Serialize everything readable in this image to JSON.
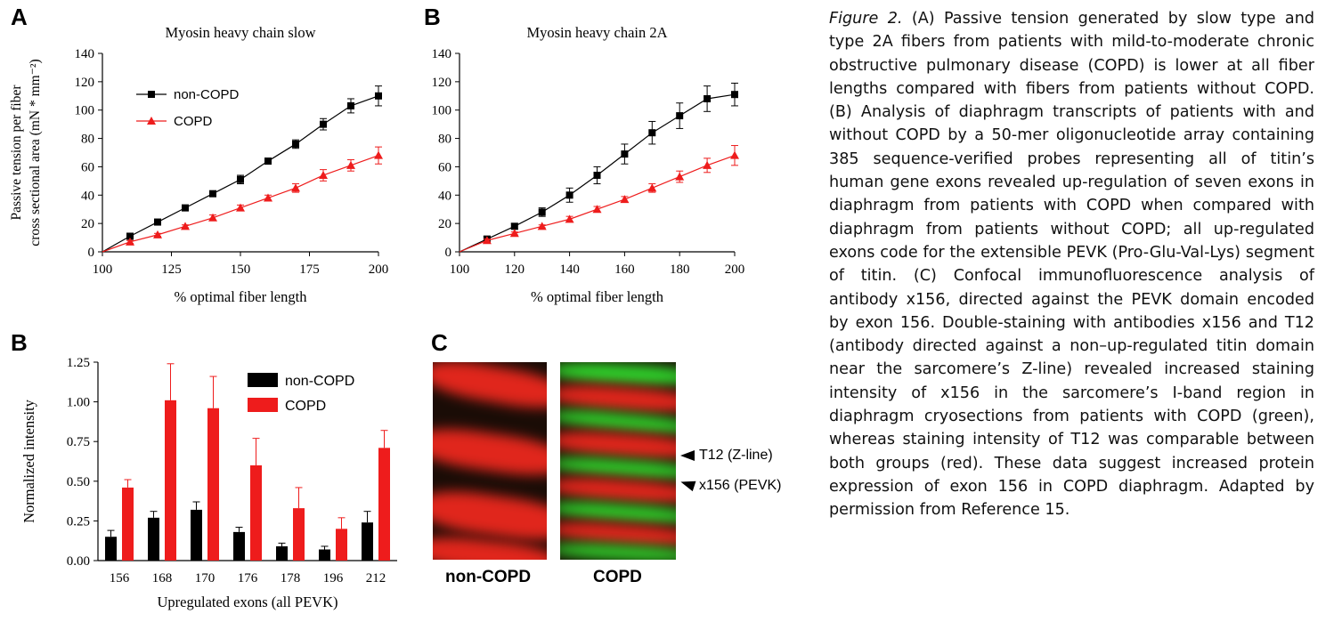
{
  "panels": {
    "a": "A",
    "b_top": "B",
    "b_bottom": "B",
    "c": "C"
  },
  "chart_data": [
    {
      "id": "A",
      "type": "line",
      "title": "Myosin heavy chain slow",
      "xlabel": "% optimal fiber length",
      "ylabel": [
        "Passive tension per fiber",
        "cross sectional area (mN * mm⁻²)"
      ],
      "xlim": [
        100,
        200
      ],
      "ylim": [
        0,
        140
      ],
      "xticks": [
        "100",
        "125",
        "150",
        "175",
        "200"
      ],
      "yticks": [
        "0",
        "20",
        "40",
        "60",
        "80",
        "100",
        "120",
        "140"
      ],
      "legend_position": "top-left",
      "series": [
        {
          "name": "non-COPD",
          "color": "#000000",
          "marker": "square",
          "x": [
            100,
            110,
            120,
            130,
            140,
            150,
            160,
            170,
            180,
            190,
            200
          ],
          "y": [
            0,
            11,
            21,
            31,
            41,
            51,
            64,
            76,
            90,
            103,
            110
          ],
          "err": [
            0,
            1,
            1,
            1,
            1,
            3,
            2,
            3,
            4,
            5,
            7
          ]
        },
        {
          "name": "COPD",
          "color": "#ee1c1c",
          "marker": "triangle",
          "x": [
            100,
            110,
            120,
            130,
            140,
            150,
            160,
            170,
            180,
            190,
            200
          ],
          "y": [
            0,
            7,
            12,
            18,
            24,
            31,
            38,
            45,
            54,
            61,
            68
          ],
          "err": [
            0,
            1,
            1,
            1,
            2,
            2,
            2,
            3,
            4,
            4,
            6
          ]
        }
      ]
    },
    {
      "id": "B-top",
      "type": "line",
      "title": "Myosin heavy chain 2A",
      "xlabel": "% optimal fiber length",
      "ylabel": "",
      "xlim": [
        100,
        200
      ],
      "ylim": [
        0,
        140
      ],
      "xticks": [
        "100",
        "120",
        "140",
        "160",
        "180",
        "200"
      ],
      "yticks": [
        "0",
        "20",
        "40",
        "60",
        "80",
        "100",
        "120",
        "140"
      ],
      "series": [
        {
          "name": "non-COPD",
          "color": "#000000",
          "marker": "square",
          "x": [
            100,
            110,
            120,
            130,
            140,
            150,
            160,
            170,
            180,
            190,
            200
          ],
          "y": [
            0,
            9,
            18,
            28,
            40,
            54,
            69,
            84,
            96,
            108,
            111
          ],
          "err": [
            0,
            2,
            2,
            3,
            5,
            6,
            7,
            8,
            9,
            9,
            8
          ]
        },
        {
          "name": "COPD",
          "color": "#ee1c1c",
          "marker": "triangle",
          "x": [
            100,
            110,
            120,
            130,
            140,
            150,
            160,
            170,
            180,
            190,
            200
          ],
          "y": [
            0,
            8,
            13,
            18,
            23,
            30,
            37,
            45,
            53,
            61,
            68
          ],
          "err": [
            0,
            1,
            1,
            1,
            2,
            2,
            2,
            3,
            4,
            5,
            7
          ]
        }
      ]
    },
    {
      "id": "B-bottom",
      "type": "bar",
      "title": "",
      "xlabel": "Upregulated exons (all PEVK)",
      "ylabel": "Normalized intensity",
      "ylim": [
        0,
        1.25
      ],
      "yticks": [
        "0.00",
        "0.25",
        "0.50",
        "0.75",
        "1.00",
        "1.25"
      ],
      "categories": [
        "156",
        "168",
        "170",
        "176",
        "178",
        "196",
        "212"
      ],
      "legend_position": "top-right",
      "series": [
        {
          "name": "non-COPD",
          "color": "#000000",
          "values": [
            0.15,
            0.27,
            0.32,
            0.18,
            0.09,
            0.07,
            0.24
          ],
          "err": [
            0.04,
            0.04,
            0.05,
            0.03,
            0.02,
            0.02,
            0.07
          ]
        },
        {
          "name": "COPD",
          "color": "#ee1c1c",
          "values": [
            0.46,
            1.01,
            0.96,
            0.6,
            0.33,
            0.2,
            0.71
          ],
          "err": [
            0.05,
            0.23,
            0.2,
            0.17,
            0.13,
            0.07,
            0.11
          ]
        }
      ]
    }
  ],
  "micrograph": {
    "labels": {
      "left": "non-COPD",
      "right": "COPD"
    },
    "annotations": {
      "t12": "T12 (Z-line)",
      "x156": "x156 (PEVK)"
    },
    "colors": {
      "red": "#e0261c",
      "green": "#2fd22a",
      "bg": "#1a0c06"
    }
  },
  "caption": {
    "figure_label": "Figure 2.",
    "text": "(A) Passive tension generated by slow type and type 2A fibers from patients with mild-to-moderate chronic obstructive pulmonary disease (COPD) is lower at all fiber lengths compared with fibers from patients without COPD. (B) Analysis of diaphragm transcripts of patients with and without COPD by a 50-mer oligonucleotide array containing 385 sequence-verified probes representing all of titin’s human gene exons revealed up-regulation of seven exons in diaphragm from patients with COPD when compared with diaphragm from patients without COPD; all up-regulated exons code for the extensible PEVK (Pro-Glu-Val-Lys) segment of titin. (C) Confocal immunofluorescence analysis of antibody x156, directed against the PEVK domain encoded by exon 156. Double-staining with antibodies x156 and T12 (antibody directed against a non–up-regulated titin domain near the sarcomere’s Z-line) revealed increased staining intensity of x156 in the sarcomere’s I-band region in diaphragm cryosections from patients with COPD (green), whereas staining intensity of T12 was comparable between both groups (red). These data suggest increased protein expression of exon 156 in COPD diaphragm. Adapted by permission from Reference 15."
  }
}
